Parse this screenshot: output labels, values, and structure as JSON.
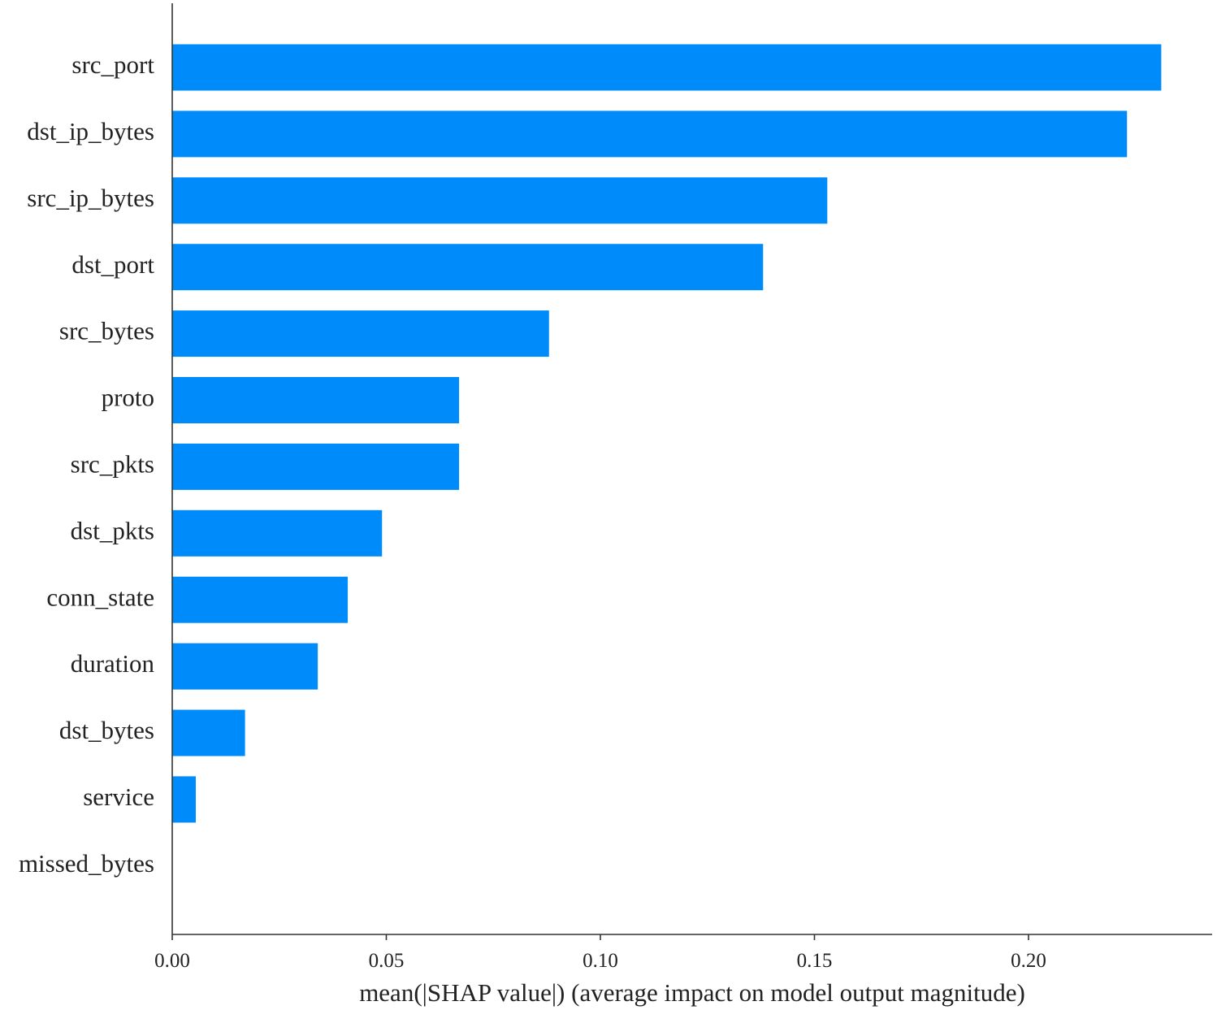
{
  "chart_data": {
    "type": "bar",
    "orientation": "horizontal",
    "categories": [
      "src_port",
      "dst_ip_bytes",
      "src_ip_bytes",
      "dst_port",
      "src_bytes",
      "proto",
      "src_pkts",
      "dst_pkts",
      "conn_state",
      "duration",
      "dst_bytes",
      "service",
      "missed_bytes"
    ],
    "values": [
      0.231,
      0.223,
      0.153,
      0.138,
      0.088,
      0.067,
      0.067,
      0.049,
      0.041,
      0.034,
      0.017,
      0.0055,
      0.0
    ],
    "title": "",
    "xlabel": "mean(|SHAP value|) (average impact on model output magnitude)",
    "ylabel": "",
    "xlim": [
      0.0,
      0.243
    ],
    "xticks": [
      0.0,
      0.05,
      0.1,
      0.15,
      0.2
    ],
    "xtick_labels": [
      "0.00",
      "0.05",
      "0.10",
      "0.15",
      "0.20"
    ],
    "bar_color": "#008bfb",
    "grid": false
  }
}
